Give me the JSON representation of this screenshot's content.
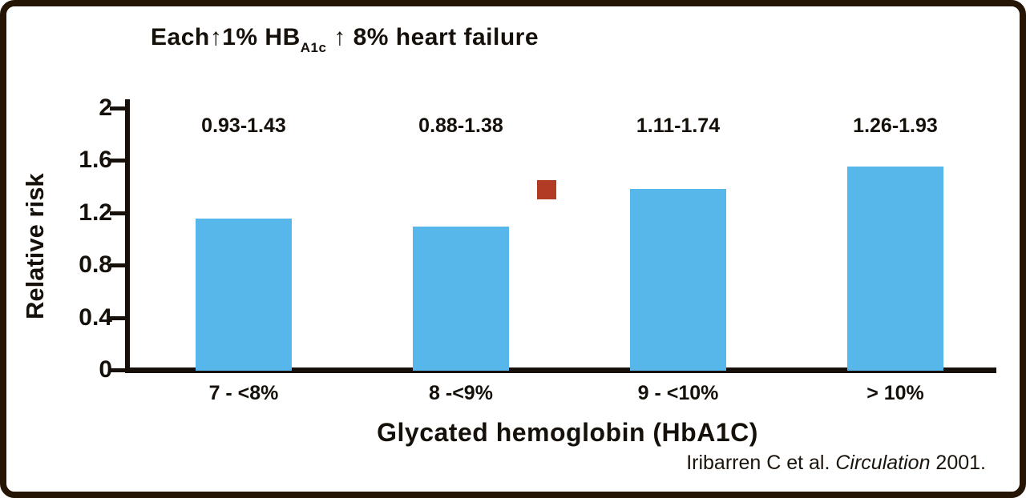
{
  "title": {
    "part1": "Each↑1% HB",
    "subscript": "A1c",
    "part2": " ↑ 8% heart failure"
  },
  "y_axis": {
    "label": "Relative risk"
  },
  "x_axis": {
    "label": "Glycated hemoglobin (HbA1C)"
  },
  "citation": {
    "prefix": "Iribarren C et al. ",
    "italic": "Circulation",
    "suffix": " 2001."
  },
  "marker": {
    "name": "red-square-marker",
    "color": "#b23b26",
    "value": 1.38
  },
  "colors": {
    "bar": "#58b7ea",
    "axis": "#17100a",
    "frame_border": "#241505"
  },
  "chart_data": {
    "type": "bar",
    "categories": [
      "7 - <8%",
      "8 -<9%",
      "9 - <10%",
      "> 10%"
    ],
    "values": [
      1.16,
      1.1,
      1.39,
      1.56
    ],
    "ci_labels": [
      "0.93-1.43",
      "0.88-1.38",
      "1.11-1.74",
      "1.26-1.93"
    ],
    "title": "Each↑1% HBA1c ↑ 8% heart failure",
    "xlabel": "Glycated hemoglobin (HbA1C)",
    "ylabel": "Relative risk",
    "ylim": [
      0,
      2
    ],
    "yticks": [
      0,
      0.4,
      0.8,
      1.2,
      1.6,
      2
    ],
    "bar_color": "#58b7ea",
    "grid": false,
    "legend": "none"
  }
}
